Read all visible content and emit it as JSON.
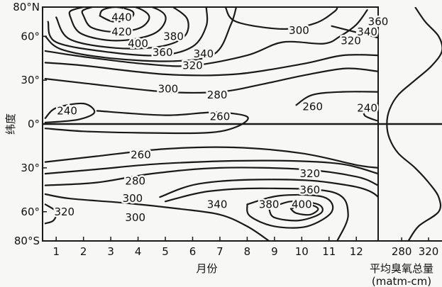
{
  "chart_data": [
    {
      "type": "contour",
      "xlabel": "月份",
      "ylabel": "纬度",
      "x_ticks": [
        "1",
        "2",
        "3",
        "4",
        "5",
        "6",
        "7",
        "8",
        "9",
        "10",
        "11",
        "12"
      ],
      "y_ticks": [
        "80°N",
        "60°",
        "30°",
        "0°",
        "30°",
        "60°",
        "80°S"
      ],
      "y_tick_values": [
        80,
        60,
        30,
        0,
        -30,
        -60,
        -80
      ],
      "ylim": [
        -80,
        80
      ],
      "xlim": [
        0.5,
        12.8
      ],
      "contours": [
        {
          "value": 440,
          "points": [
            [
              2.6,
              74
            ],
            [
              3.1,
              70
            ],
            [
              3.7,
              72
            ],
            [
              3.8,
              77
            ],
            [
              3.2,
              80
            ],
            [
              2.7,
              78
            ],
            [
              2.6,
              74
            ]
          ]
        },
        {
          "value": 420,
          "points": [
            [
              2.0,
              74
            ],
            [
              2.3,
              66
            ],
            [
              3.2,
              63
            ],
            [
              4.1,
              66
            ],
            [
              4.4,
              74
            ],
            [
              3.8,
              80.5
            ],
            [
              2.7,
              81
            ],
            [
              2.0,
              78
            ],
            [
              2.0,
              74
            ]
          ]
        },
        {
          "value": 400,
          "points": [
            [
              1.5,
              74
            ],
            [
              1.9,
              62
            ],
            [
              3.2,
              57
            ],
            [
              4.6,
              62
            ],
            [
              5.0,
              74
            ],
            [
              4.2,
              81.5
            ],
            [
              2.7,
              82
            ],
            [
              1.6,
              78
            ],
            [
              1.5,
              74
            ]
          ]
        },
        {
          "value": 380,
          "points": [
            [
              1.0,
              73
            ],
            [
              1.5,
              58
            ],
            [
              3.2,
              52
            ],
            [
              4.8,
              53
            ],
            [
              5.7,
              60
            ],
            [
              5.8,
              72
            ],
            [
              5.2,
              81
            ]
          ]
        },
        {
          "value": 360,
          "points": [
            [
              0.7,
              70
            ],
            [
              1.0,
              56
            ],
            [
              3.0,
              49
            ],
            [
              4.8,
              47
            ],
            [
              6.0,
              53
            ],
            [
              6.5,
              67
            ],
            [
              6.5,
              80
            ]
          ]
        },
        {
          "value": 340,
          "points": [
            [
              0.6,
              60
            ],
            [
              1.2,
              51
            ],
            [
              3.0,
              45
            ],
            [
              5.3,
              43
            ],
            [
              6.8,
              48
            ],
            [
              7.4,
              68
            ],
            [
              7.6,
              80
            ]
          ]
        },
        {
          "value": 320,
          "points": [
            [
              0.6,
              50
            ],
            [
              2.0,
              46
            ],
            [
              4.3,
              41
            ],
            [
              6.0,
              40
            ],
            [
              8.0,
              47
            ],
            [
              9.3,
              56
            ],
            [
              10.8,
              55
            ],
            [
              11.4,
              60
            ],
            [
              12.0,
              68
            ],
            [
              12.4,
              78
            ]
          ]
        },
        {
          "value": 320,
          "points": [
            [
              11.1,
              67
            ],
            [
              12.8,
              59
            ]
          ]
        },
        {
          "value": 300,
          "points": [
            [
              0.6,
              42
            ],
            [
              2.0,
              40
            ],
            [
              5.0,
              34
            ],
            [
              7.5,
              34
            ],
            [
              10.0,
              41
            ],
            [
              11.5,
              47
            ],
            [
              12.8,
              47
            ]
          ]
        },
        {
          "value": 300,
          "points": [
            [
              7.2,
              80
            ],
            [
              7.6,
              70
            ],
            [
              9.3,
              65
            ],
            [
              10.5,
              69
            ],
            [
              11.2,
              77
            ],
            [
              11.3,
              80
            ]
          ]
        },
        {
          "value": 280,
          "points": [
            [
              0.6,
              31
            ],
            [
              2.0,
              28
            ],
            [
              5.0,
              22
            ],
            [
              7.0,
              22
            ],
            [
              8.5,
              27
            ],
            [
              10.0,
              33
            ],
            [
              11.6,
              38
            ],
            [
              12.8,
              36
            ]
          ]
        },
        {
          "value": 260,
          "points": [
            [
              2.5,
              9
            ],
            [
              5.0,
              6
            ],
            [
              6.8,
              8
            ],
            [
              8.0,
              5
            ],
            [
              7.6,
              -2
            ],
            [
              6.5,
              -6
            ],
            [
              4.0,
              -6
            ],
            [
              2.0,
              -5
            ],
            [
              0.6,
              -3
            ]
          ]
        },
        {
          "value": 260,
          "points": [
            [
              9.8,
              13
            ],
            [
              10.4,
              20
            ],
            [
              11.5,
              22
            ],
            [
              12.8,
              22
            ]
          ]
        },
        {
          "value": 240,
          "points": [
            [
              0.6,
              4
            ],
            [
              1.0,
              11
            ],
            [
              2.0,
              14
            ],
            [
              2.4,
              8
            ],
            [
              1.8,
              3
            ],
            [
              0.6,
              1
            ]
          ]
        },
        {
          "value": 240,
          "points": [
            [
              12.8,
              2
            ],
            [
              12.3,
              6
            ],
            [
              12.4,
              12
            ],
            [
              12.8,
              14
            ]
          ]
        },
        {
          "value": 260,
          "points": [
            [
              0.6,
              -26
            ],
            [
              2.5,
              -22
            ],
            [
              5.0,
              -17
            ],
            [
              7.5,
              -16
            ],
            [
              10.0,
              -20
            ],
            [
              12.0,
              -28
            ],
            [
              12.8,
              -30
            ]
          ]
        },
        {
          "value": 280,
          "points": [
            [
              0.6,
              -34
            ],
            [
              2.5,
              -31
            ],
            [
              5.0,
              -27
            ],
            [
              8.5,
              -25
            ],
            [
              11.3,
              -27
            ],
            [
              12.8,
              -34
            ]
          ]
        },
        {
          "value": 300,
          "points": [
            [
              0.6,
              -42
            ],
            [
              2.5,
              -40
            ],
            [
              4.5,
              -34
            ],
            [
              7.0,
              -30
            ],
            [
              10.0,
              -31
            ],
            [
              12.0,
              -36
            ],
            [
              12.8,
              -42
            ]
          ]
        },
        {
          "value": 300,
          "points": [
            [
              0.6,
              -48
            ],
            [
              1.5,
              -51
            ],
            [
              3.5,
              -54
            ],
            [
              5.5,
              -58
            ],
            [
              7.0,
              -62
            ],
            [
              8.0,
              -70
            ],
            [
              8.8,
              -80
            ]
          ]
        },
        {
          "value": 320,
          "points": [
            [
              0.6,
              -55
            ],
            [
              1.0,
              -60
            ],
            [
              0.9,
              -66
            ],
            [
              0.6,
              -68
            ]
          ]
        },
        {
          "value": 320,
          "points": [
            [
              4.8,
              -50
            ],
            [
              6.2,
              -41
            ],
            [
              8.5,
              -38
            ],
            [
              11.0,
              -40
            ],
            [
              12.8,
              -50
            ],
            [
              12.9,
              -80
            ]
          ]
        },
        {
          "value": 340,
          "points": [
            [
              5.0,
              -53
            ],
            [
              6.6,
              -46
            ],
            [
              8.8,
              -44
            ],
            [
              11.2,
              -47
            ],
            [
              11.7,
              -62
            ],
            [
              11.3,
              -80
            ]
          ]
        },
        {
          "value": 360,
          "points": [
            [
              8.0,
              -55
            ],
            [
              9.2,
              -49
            ],
            [
              10.8,
              -50
            ],
            [
              11.1,
              -60
            ],
            [
              10.2,
              -70
            ],
            [
              9.0,
              -70
            ],
            [
              8.1,
              -63
            ],
            [
              8.0,
              -55
            ]
          ]
        },
        {
          "value": 380,
          "points": [
            [
              8.8,
              -58
            ],
            [
              9.6,
              -53
            ],
            [
              10.6,
              -55
            ],
            [
              10.7,
              -61
            ],
            [
              9.9,
              -66
            ],
            [
              9.0,
              -64
            ],
            [
              8.8,
              -58
            ]
          ]
        },
        {
          "value": 400,
          "points": [
            [
              9.6,
              -58
            ],
            [
              10.2,
              -55
            ],
            [
              10.6,
              -58
            ],
            [
              10.3,
              -62
            ],
            [
              9.8,
              -61
            ],
            [
              9.6,
              -58
            ]
          ]
        }
      ],
      "contour_labels": [
        {
          "text": "440",
          "x": 3.4,
          "y": 73
        },
        {
          "text": "420",
          "x": 3.4,
          "y": 63
        },
        {
          "text": "400",
          "x": 4.0,
          "y": 55
        },
        {
          "text": "380",
          "x": 5.3,
          "y": 60
        },
        {
          "text": "360",
          "x": 4.9,
          "y": 49
        },
        {
          "text": "340",
          "x": 6.4,
          "y": 48
        },
        {
          "text": "320",
          "x": 6.0,
          "y": 40
        },
        {
          "text": "300",
          "x": 5.1,
          "y": 24
        },
        {
          "text": "280",
          "x": 6.9,
          "y": 20
        },
        {
          "text": "260",
          "x": 7.0,
          "y": 5
        },
        {
          "text": "240",
          "x": 1.4,
          "y": 9
        },
        {
          "text": "300",
          "x": 9.9,
          "y": 64
        },
        {
          "text": "320",
          "x": 11.8,
          "y": 57
        },
        {
          "text": "340",
          "x": 12.4,
          "y": 63
        },
        {
          "text": "360",
          "x": 12.8,
          "y": 70
        },
        {
          "text": "260",
          "x": 10.4,
          "y": 12
        },
        {
          "text": "240",
          "x": 12.4,
          "y": 11
        },
        {
          "text": "260",
          "x": 4.1,
          "y": -21
        },
        {
          "text": "280",
          "x": 3.9,
          "y": -39
        },
        {
          "text": "300",
          "x": 3.8,
          "y": -51
        },
        {
          "text": "300",
          "x": 3.9,
          "y": -64
        },
        {
          "text": "320",
          "x": 1.3,
          "y": -60
        },
        {
          "text": "340",
          "x": 6.9,
          "y": -55
        },
        {
          "text": "320",
          "x": 10.3,
          "y": -34
        },
        {
          "text": "360",
          "x": 10.3,
          "y": -45
        },
        {
          "text": "380",
          "x": 8.8,
          "y": -55
        },
        {
          "text": "400",
          "x": 10.0,
          "y": -55
        }
      ]
    },
    {
      "type": "line",
      "xlabel": "平均臭氧总量",
      "xunit": "(matm-cm)",
      "x_ticks": [
        "280",
        "320"
      ],
      "x_tick_values": [
        280,
        320
      ],
      "xlim": [
        245,
        340
      ],
      "ylim": [
        -80,
        80
      ],
      "series": [
        {
          "lat": [
            -80,
            -70,
            -60,
            -50,
            -40,
            -30,
            -20,
            -10,
            0,
            10,
            20,
            30,
            40,
            50,
            60,
            70,
            80
          ],
          "values": [
            290,
            305,
            335,
            335,
            320,
            300,
            275,
            262,
            258,
            262,
            275,
            300,
            325,
            340,
            335,
            315,
            300
          ]
        }
      ]
    }
  ]
}
